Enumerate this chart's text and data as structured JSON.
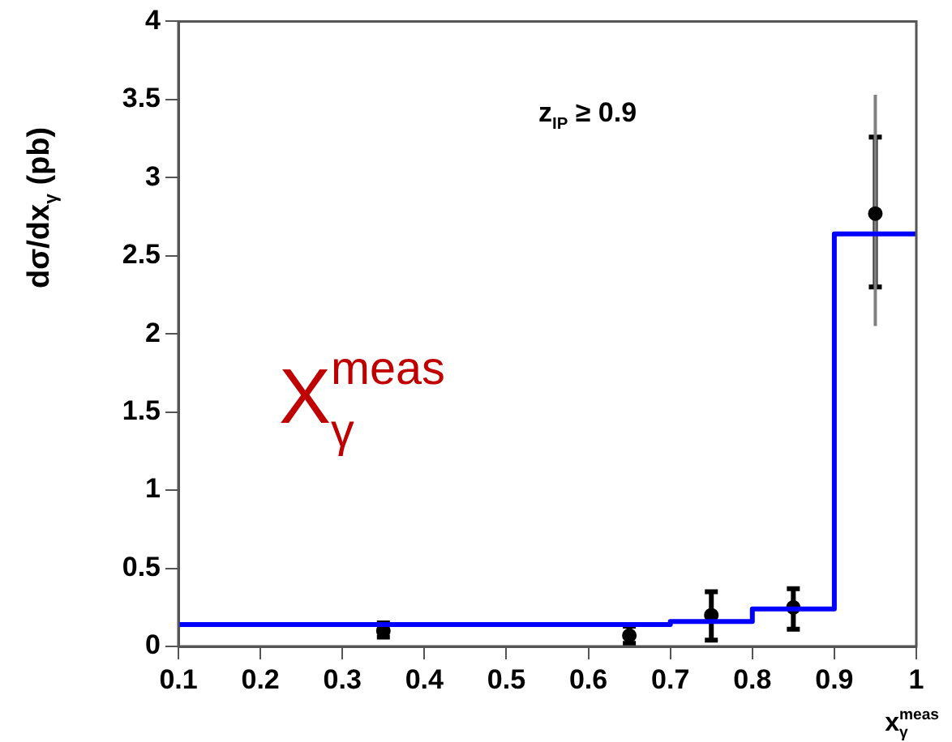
{
  "chart_data": {
    "type": "scatter",
    "xlabel": "x$_{γ}$$^{meas}$",
    "ylabel": "dσ/dx$_{γ}$ (pb)",
    "xlim": [
      0.1,
      1
    ],
    "xticks": [
      0.1,
      0.2,
      0.3,
      0.4,
      0.5,
      0.6,
      0.7,
      0.8,
      0.9,
      1
    ],
    "ylim": [
      0,
      4
    ],
    "yticks": [
      0,
      0.5,
      1,
      1.5,
      2,
      2.5,
      3,
      3.5,
      4
    ],
    "legend": false,
    "grid": false,
    "annotations": [
      {
        "text": "z$_{IP}$ ≥ 0.9"
      },
      {
        "text": "X$_{γ}$$^{meas}$"
      }
    ],
    "series": [
      {
        "type": "step",
        "color": "#0000ff",
        "x": [
          0.1,
          0.7,
          0.8,
          0.9,
          1.0
        ],
        "values": [
          0.14,
          0.16,
          0.24,
          2.64,
          2.64
        ],
        "marker": "none"
      },
      {
        "type": "line",
        "color": "#808080",
        "x": [
          0.95,
          0.95
        ],
        "values": [
          2.05,
          3.53
        ],
        "marker": "none"
      },
      {
        "color": "#000000",
        "x": [
          0.35,
          0.65,
          0.75,
          0.85,
          0.95
        ],
        "values": [
          0.1,
          0.07,
          0.2,
          0.25,
          2.77
        ],
        "errors": [
          [
            0.06,
            0.15
          ],
          [
            0.02,
            0.13
          ],
          [
            0.04,
            0.35
          ],
          [
            0.11,
            0.37
          ],
          [
            2.3,
            3.26
          ]
        ],
        "marker": "circle"
      }
    ]
  }
}
